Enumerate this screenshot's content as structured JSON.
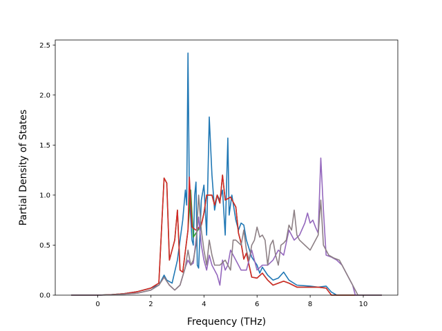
{
  "chart_data": {
    "type": "line",
    "title": "",
    "xlabel": "Frequency (THz)",
    "ylabel": "Partial Density of States",
    "xlim": [
      -1.6,
      11.3
    ],
    "ylim": [
      0.0,
      2.55
    ],
    "xticks": [
      0,
      2,
      4,
      6,
      8,
      10
    ],
    "yticks": [
      0.0,
      0.5,
      1.0,
      1.5,
      2.0,
      2.5
    ],
    "xtick_labels": [
      "0",
      "2",
      "4",
      "6",
      "8",
      "10"
    ],
    "ytick_labels": [
      "0.0",
      "0.5",
      "1.0",
      "1.5",
      "2.0",
      "2.5"
    ],
    "grid": false,
    "legend": "none",
    "series": [
      {
        "color": "#1f77b4",
        "points": [
          [
            -1.0,
            0
          ],
          [
            0,
            0
          ],
          [
            0.5,
            0.005
          ],
          [
            1.0,
            0.015
          ],
          [
            1.5,
            0.035
          ],
          [
            2.0,
            0.07
          ],
          [
            2.3,
            0.1
          ],
          [
            2.5,
            0.2
          ],
          [
            2.6,
            0.15
          ],
          [
            2.8,
            0.12
          ],
          [
            3.0,
            0.35
          ],
          [
            3.1,
            0.55
          ],
          [
            3.2,
            0.75
          ],
          [
            3.3,
            1.05
          ],
          [
            3.35,
            0.9
          ],
          [
            3.4,
            2.42
          ],
          [
            3.45,
            1.0
          ],
          [
            3.55,
            0.55
          ],
          [
            3.6,
            0.5
          ],
          [
            3.65,
            1.0
          ],
          [
            3.7,
            1.13
          ],
          [
            3.75,
            0.3
          ],
          [
            3.8,
            0.27
          ],
          [
            3.9,
            0.95
          ],
          [
            4.0,
            1.1
          ],
          [
            4.1,
            0.6
          ],
          [
            4.2,
            1.78
          ],
          [
            4.3,
            1.2
          ],
          [
            4.4,
            0.85
          ],
          [
            4.5,
            1.0
          ],
          [
            4.6,
            0.95
          ],
          [
            4.7,
            1.05
          ],
          [
            4.8,
            0.6
          ],
          [
            4.9,
            1.57
          ],
          [
            4.95,
            0.8
          ],
          [
            5.05,
            1.0
          ],
          [
            5.2,
            0.75
          ],
          [
            5.3,
            0.65
          ],
          [
            5.4,
            0.72
          ],
          [
            5.5,
            0.7
          ],
          [
            5.6,
            0.55
          ],
          [
            5.8,
            0.38
          ],
          [
            6.0,
            0.3
          ],
          [
            6.1,
            0.22
          ],
          [
            6.2,
            0.28
          ],
          [
            6.4,
            0.2
          ],
          [
            6.6,
            0.15
          ],
          [
            6.8,
            0.17
          ],
          [
            7.0,
            0.23
          ],
          [
            7.2,
            0.15
          ],
          [
            7.5,
            0.1
          ],
          [
            8.0,
            0.09
          ],
          [
            8.3,
            0.08
          ],
          [
            8.6,
            0.09
          ],
          [
            8.8,
            0.03
          ],
          [
            9.0,
            0.0
          ],
          [
            10.7,
            0
          ]
        ]
      },
      {
        "color": "#2ca02c",
        "points": [
          [
            -1.0,
            0
          ],
          [
            0,
            0
          ],
          [
            0.5,
            0.005
          ],
          [
            1.0,
            0.015
          ],
          [
            1.5,
            0.035
          ],
          [
            2.0,
            0.07
          ],
          [
            2.3,
            0.12
          ],
          [
            2.5,
            1.17
          ],
          [
            2.6,
            1.12
          ],
          [
            2.7,
            0.35
          ],
          [
            2.9,
            0.55
          ],
          [
            3.0,
            0.85
          ],
          [
            3.1,
            0.25
          ],
          [
            3.2,
            0.23
          ],
          [
            3.4,
            0.65
          ],
          [
            3.5,
            1.05
          ],
          [
            3.6,
            0.58
          ],
          [
            3.7,
            0.62
          ],
          [
            3.9,
            0.7
          ],
          [
            4.0,
            0.82
          ],
          [
            4.1,
            1.0
          ],
          [
            4.3,
            1.0
          ],
          [
            4.4,
            0.9
          ],
          [
            4.5,
            1.0
          ],
          [
            4.6,
            0.92
          ],
          [
            4.7,
            1.2
          ],
          [
            4.8,
            0.95
          ],
          [
            5.0,
            0.98
          ],
          [
            5.2,
            0.88
          ],
          [
            5.3,
            0.62
          ],
          [
            5.4,
            0.52
          ],
          [
            5.5,
            0.36
          ],
          [
            5.6,
            0.42
          ],
          [
            5.8,
            0.18
          ],
          [
            6.0,
            0.17
          ],
          [
            6.2,
            0.22
          ],
          [
            6.4,
            0.15
          ],
          [
            6.6,
            0.1
          ],
          [
            6.8,
            0.12
          ],
          [
            7.0,
            0.14
          ],
          [
            7.2,
            0.12
          ],
          [
            7.5,
            0.08
          ],
          [
            8.0,
            0.08
          ],
          [
            8.3,
            0.08
          ],
          [
            8.6,
            0.07
          ],
          [
            8.8,
            0.0
          ],
          [
            10.7,
            0
          ]
        ]
      },
      {
        "color": "#d62728",
        "points": [
          [
            -1.0,
            0
          ],
          [
            0,
            0
          ],
          [
            0.5,
            0.005
          ],
          [
            1.0,
            0.015
          ],
          [
            1.5,
            0.035
          ],
          [
            2.0,
            0.07
          ],
          [
            2.3,
            0.12
          ],
          [
            2.5,
            1.17
          ],
          [
            2.6,
            1.12
          ],
          [
            2.7,
            0.35
          ],
          [
            2.9,
            0.55
          ],
          [
            3.0,
            0.85
          ],
          [
            3.1,
            0.25
          ],
          [
            3.2,
            0.23
          ],
          [
            3.4,
            0.65
          ],
          [
            3.45,
            1.18
          ],
          [
            3.55,
            0.68
          ],
          [
            3.7,
            0.65
          ],
          [
            3.9,
            0.7
          ],
          [
            4.0,
            0.82
          ],
          [
            4.1,
            1.0
          ],
          [
            4.3,
            1.0
          ],
          [
            4.4,
            0.9
          ],
          [
            4.5,
            1.0
          ],
          [
            4.6,
            0.92
          ],
          [
            4.7,
            1.2
          ],
          [
            4.8,
            0.95
          ],
          [
            5.0,
            0.98
          ],
          [
            5.2,
            0.88
          ],
          [
            5.3,
            0.62
          ],
          [
            5.4,
            0.52
          ],
          [
            5.5,
            0.36
          ],
          [
            5.6,
            0.42
          ],
          [
            5.8,
            0.18
          ],
          [
            6.0,
            0.17
          ],
          [
            6.2,
            0.22
          ],
          [
            6.4,
            0.15
          ],
          [
            6.6,
            0.1
          ],
          [
            6.8,
            0.12
          ],
          [
            7.0,
            0.14
          ],
          [
            7.2,
            0.12
          ],
          [
            7.5,
            0.08
          ],
          [
            8.0,
            0.08
          ],
          [
            8.3,
            0.08
          ],
          [
            8.6,
            0.07
          ],
          [
            8.8,
            0.0
          ],
          [
            10.7,
            0
          ]
        ]
      },
      {
        "color": "#9467bd",
        "points": [
          [
            -1.0,
            0
          ],
          [
            0,
            0
          ],
          [
            0.5,
            0.003
          ],
          [
            1.0,
            0.01
          ],
          [
            1.5,
            0.02
          ],
          [
            2.0,
            0.05
          ],
          [
            2.3,
            0.1
          ],
          [
            2.5,
            0.18
          ],
          [
            2.7,
            0.1
          ],
          [
            2.9,
            0.05
          ],
          [
            3.1,
            0.1
          ],
          [
            3.3,
            0.28
          ],
          [
            3.4,
            0.35
          ],
          [
            3.5,
            0.3
          ],
          [
            3.6,
            0.32
          ],
          [
            3.7,
            0.55
          ],
          [
            3.8,
            0.78
          ],
          [
            3.9,
            0.5
          ],
          [
            4.0,
            0.35
          ],
          [
            4.1,
            0.25
          ],
          [
            4.2,
            0.4
          ],
          [
            4.3,
            0.3
          ],
          [
            4.4,
            0.25
          ],
          [
            4.5,
            0.2
          ],
          [
            4.6,
            0.1
          ],
          [
            4.7,
            0.35
          ],
          [
            4.8,
            0.25
          ],
          [
            4.9,
            0.3
          ],
          [
            5.0,
            0.45
          ],
          [
            5.2,
            0.35
          ],
          [
            5.4,
            0.25
          ],
          [
            5.6,
            0.25
          ],
          [
            5.8,
            0.45
          ],
          [
            6.0,
            0.25
          ],
          [
            6.2,
            0.3
          ],
          [
            6.4,
            0.3
          ],
          [
            6.6,
            0.35
          ],
          [
            6.8,
            0.45
          ],
          [
            7.0,
            0.4
          ],
          [
            7.2,
            0.65
          ],
          [
            7.4,
            0.55
          ],
          [
            7.6,
            0.6
          ],
          [
            7.8,
            0.72
          ],
          [
            7.9,
            0.82
          ],
          [
            8.0,
            0.72
          ],
          [
            8.1,
            0.75
          ],
          [
            8.2,
            0.68
          ],
          [
            8.3,
            0.62
          ],
          [
            8.4,
            1.37
          ],
          [
            8.5,
            0.85
          ],
          [
            8.6,
            0.4
          ],
          [
            8.8,
            0.38
          ],
          [
            9.0,
            0.35
          ],
          [
            9.2,
            0.3
          ],
          [
            9.4,
            0.2
          ],
          [
            9.6,
            0.1
          ],
          [
            9.7,
            0.0
          ],
          [
            10.7,
            0
          ]
        ]
      },
      {
        "color": "#8c7f84",
        "points": [
          [
            -1.0,
            0
          ],
          [
            0,
            0
          ],
          [
            0.5,
            0.003
          ],
          [
            1.0,
            0.01
          ],
          [
            1.5,
            0.02
          ],
          [
            2.0,
            0.05
          ],
          [
            2.3,
            0.1
          ],
          [
            2.5,
            0.18
          ],
          [
            2.7,
            0.1
          ],
          [
            2.9,
            0.05
          ],
          [
            3.1,
            0.1
          ],
          [
            3.3,
            0.28
          ],
          [
            3.4,
            0.45
          ],
          [
            3.5,
            0.3
          ],
          [
            3.6,
            0.35
          ],
          [
            3.7,
            0.5
          ],
          [
            3.8,
            1.0
          ],
          [
            3.9,
            0.65
          ],
          [
            4.0,
            0.45
          ],
          [
            4.1,
            0.3
          ],
          [
            4.2,
            0.55
          ],
          [
            4.3,
            0.4
          ],
          [
            4.4,
            0.3
          ],
          [
            4.6,
            0.3
          ],
          [
            4.8,
            0.35
          ],
          [
            5.0,
            0.25
          ],
          [
            5.1,
            0.55
          ],
          [
            5.2,
            0.55
          ],
          [
            5.4,
            0.5
          ],
          [
            5.5,
            0.65
          ],
          [
            5.6,
            0.45
          ],
          [
            5.7,
            0.35
          ],
          [
            5.8,
            0.5
          ],
          [
            5.9,
            0.55
          ],
          [
            6.0,
            0.68
          ],
          [
            6.1,
            0.58
          ],
          [
            6.2,
            0.6
          ],
          [
            6.3,
            0.55
          ],
          [
            6.4,
            0.3
          ],
          [
            6.5,
            0.5
          ],
          [
            6.6,
            0.55
          ],
          [
            6.7,
            0.4
          ],
          [
            6.8,
            0.3
          ],
          [
            6.9,
            0.5
          ],
          [
            7.0,
            0.52
          ],
          [
            7.1,
            0.55
          ],
          [
            7.2,
            0.7
          ],
          [
            7.3,
            0.65
          ],
          [
            7.4,
            0.85
          ],
          [
            7.5,
            0.6
          ],
          [
            7.6,
            0.55
          ],
          [
            7.8,
            0.5
          ],
          [
            8.0,
            0.45
          ],
          [
            8.2,
            0.55
          ],
          [
            8.3,
            0.6
          ],
          [
            8.4,
            0.95
          ],
          [
            8.5,
            0.5
          ],
          [
            8.7,
            0.4
          ],
          [
            8.9,
            0.37
          ],
          [
            9.1,
            0.35
          ],
          [
            9.3,
            0.25
          ],
          [
            9.5,
            0.15
          ],
          [
            9.7,
            0.05
          ],
          [
            9.8,
            0.0
          ],
          [
            10.7,
            0
          ]
        ]
      }
    ]
  }
}
